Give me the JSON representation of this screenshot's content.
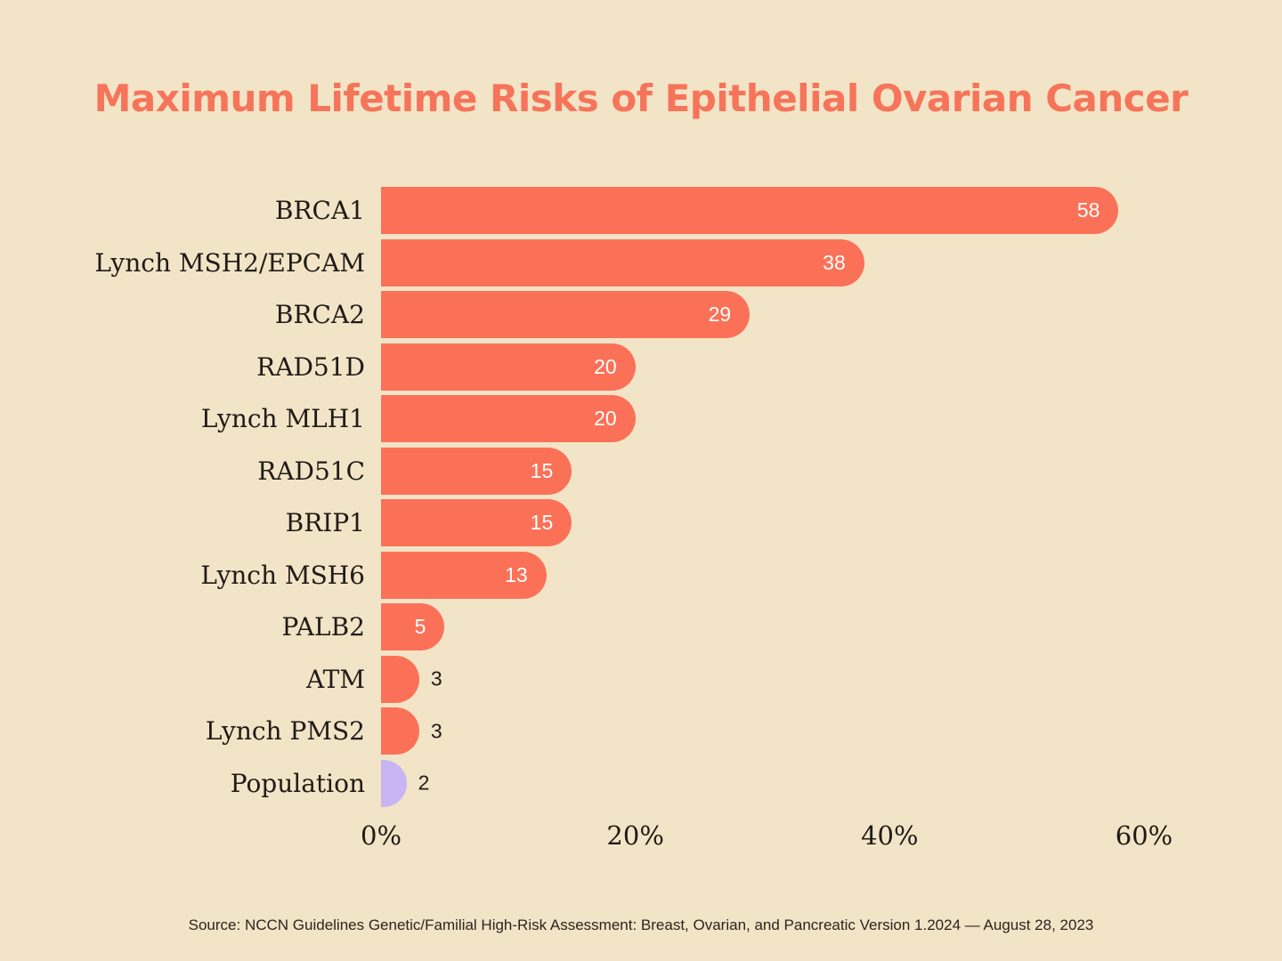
{
  "title": {
    "text": "Maximum Lifetime Risks of Epithelial Ovarian Cancer"
  },
  "colors": {
    "background": "#F2E4C6",
    "bar_coral": "#FB7158",
    "bar_purple": "#C9B4F4",
    "title": "#F6745A",
    "ink": "#1F1B17"
  },
  "chart_data": {
    "type": "bar",
    "orientation": "horizontal",
    "title": "Maximum Lifetime Risks of Epithelial Ovarian Cancer",
    "xlabel": "",
    "ylabel": "",
    "xlim": [
      0,
      60
    ],
    "grid": false,
    "legend": false,
    "x_ticks": [
      {
        "value": 0,
        "label": "0%"
      },
      {
        "value": 20,
        "label": "20%"
      },
      {
        "value": 40,
        "label": "40%"
      },
      {
        "value": 60,
        "label": "60%"
      }
    ],
    "categories": [
      "BRCA1",
      "Lynch MSH2/EPCAM",
      "BRCA2",
      "RAD51D",
      "Lynch MLH1",
      "RAD51C",
      "BRIP1",
      "Lynch MSH6",
      "PALB2",
      "ATM",
      "Lynch PMS2",
      "Population"
    ],
    "values": [
      58,
      38,
      29,
      20,
      20,
      15,
      15,
      13,
      5,
      3,
      3,
      2
    ],
    "bar_colors": [
      "#FB7158",
      "#FB7158",
      "#FB7158",
      "#FB7158",
      "#FB7158",
      "#FB7158",
      "#FB7158",
      "#FB7158",
      "#FB7158",
      "#FB7158",
      "#FB7158",
      "#C9B4F4"
    ],
    "value_label_inside_min": 5
  },
  "source": {
    "text": "Source: NCCN Guidelines Genetic/Familial High-Risk Assessment: Breast, Ovarian, and Pancreatic Version 1.2024 — August 28, 2023"
  }
}
